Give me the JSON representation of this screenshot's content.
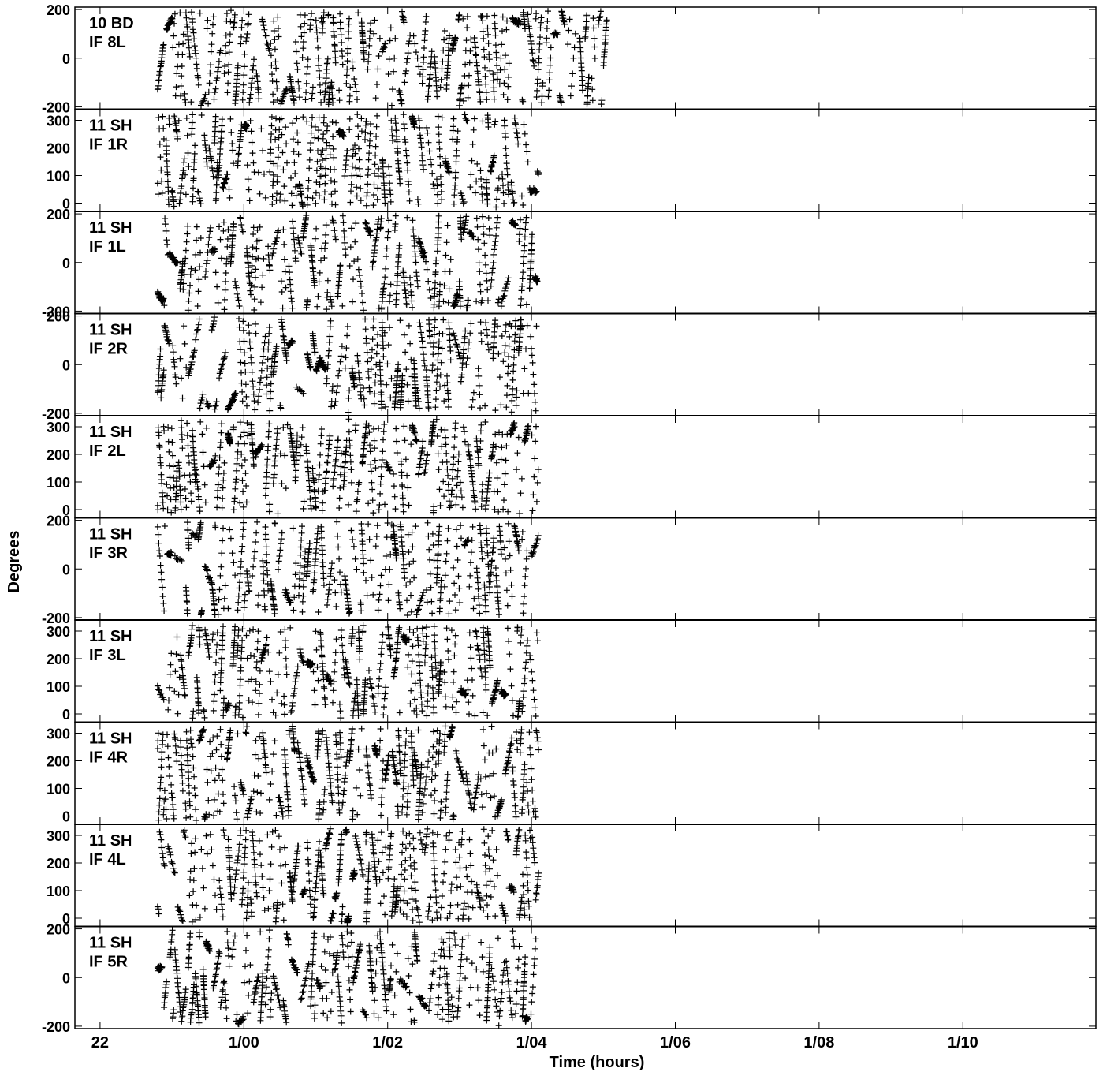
{
  "chart_data": {
    "type": "scatter",
    "marker": "+",
    "color": "#000000",
    "xlabel": "Time (hours)",
    "ylabel": "Degrees",
    "grid": false,
    "x_range_hours": [
      21.65,
      35.85
    ],
    "x_ticks": [
      {
        "label": "22",
        "hours": 22
      },
      {
        "label": "1/00",
        "hours": 24
      },
      {
        "label": "1/02",
        "hours": 26
      },
      {
        "label": "1/04",
        "hours": 28
      },
      {
        "label": "1/06",
        "hours": 30
      },
      {
        "label": "1/08",
        "hours": 32
      },
      {
        "label": "1/10",
        "hours": 34
      }
    ],
    "panels": [
      {
        "line1": "10 BD",
        "line2": "IF 8L",
        "ylim": [
          -210,
          210
        ],
        "yticks": [
          200,
          0,
          -200
        ],
        "data_x_range": [
          22.8,
          29.05
        ]
      },
      {
        "line1": "11 SH",
        "line2": "IF 1R",
        "ylim": [
          -30,
          340
        ],
        "yticks": [
          300,
          200,
          100,
          0
        ],
        "data_x_range": [
          22.8,
          28.1
        ]
      },
      {
        "line1": "11 SH",
        "line2": "IF 1L",
        "ylim": [
          -210,
          210
        ],
        "yticks": [
          200,
          0,
          -200
        ],
        "data_x_range": [
          22.8,
          28.1
        ]
      },
      {
        "line1": "11 SH",
        "line2": "IF 2R",
        "ylim": [
          -210,
          210
        ],
        "yticks": [
          200,
          0,
          -200
        ],
        "data_x_range": [
          22.8,
          28.1
        ]
      },
      {
        "line1": "11 SH",
        "line2": "IF 2L",
        "ylim": [
          -30,
          340
        ],
        "yticks": [
          300,
          200,
          100,
          0
        ],
        "data_x_range": [
          22.8,
          28.1
        ]
      },
      {
        "line1": "11 SH",
        "line2": "IF 3R",
        "ylim": [
          -210,
          210
        ],
        "yticks": [
          200,
          0,
          -200
        ],
        "data_x_range": [
          22.8,
          28.1
        ]
      },
      {
        "line1": "11 SH",
        "line2": "IF 3L",
        "ylim": [
          -30,
          340
        ],
        "yticks": [
          300,
          200,
          100,
          0
        ],
        "data_x_range": [
          22.8,
          28.1
        ]
      },
      {
        "line1": "11 SH",
        "line2": "IF 4R",
        "ylim": [
          -30,
          340
        ],
        "yticks": [
          300,
          200,
          100,
          0
        ],
        "data_x_range": [
          22.8,
          28.1
        ]
      },
      {
        "line1": "11 SH",
        "line2": "IF 4L",
        "ylim": [
          -30,
          340
        ],
        "yticks": [
          300,
          200,
          100,
          0
        ],
        "data_x_range": [
          22.8,
          28.1
        ]
      },
      {
        "line1": "11 SH",
        "line2": "IF 5R",
        "ylim": [
          -210,
          210
        ],
        "yticks": [
          200,
          0,
          -200
        ],
        "data_x_range": [
          22.8,
          28.1
        ]
      }
    ]
  }
}
